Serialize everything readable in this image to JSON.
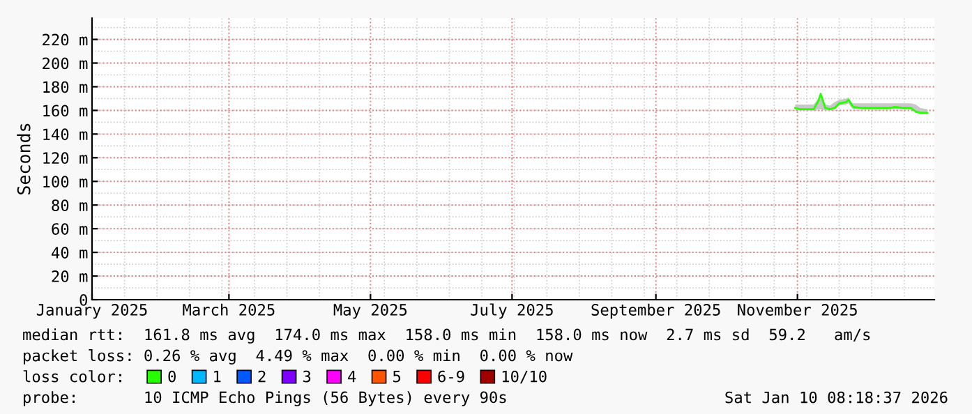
{
  "chart_data": {
    "type": "line",
    "ylabel": "Seconds",
    "legend_title": "loss color:",
    "legend": "bottom",
    "grid": true,
    "marker": "none",
    "line_style": "solid",
    "x": [
      "2025-10-31",
      "2025-11-02",
      "2025-11-05",
      "2025-11-08",
      "2025-11-10",
      "2025-11-11",
      "2025-11-13",
      "2025-11-15",
      "2025-11-17",
      "2025-11-19",
      "2025-11-22",
      "2025-11-23",
      "2025-11-24",
      "2025-11-25",
      "2025-11-29",
      "2025-12-05",
      "2025-12-11",
      "2025-12-13",
      "2025-12-17",
      "2025-12-20",
      "2025-12-22",
      "2025-12-24",
      "2025-12-27"
    ],
    "series": [
      {
        "name": "0",
        "color": "#26ff00",
        "values": [
          162,
          161,
          161,
          161,
          168,
          174,
          162,
          161,
          162,
          166,
          167,
          169,
          166,
          163,
          162,
          162,
          162,
          163,
          162,
          162,
          159,
          158,
          158
        ],
        "lower": [
          161,
          160,
          160,
          160,
          161,
          161,
          160,
          160,
          161,
          164,
          165,
          166,
          163,
          161,
          161,
          161,
          161,
          161,
          161,
          161,
          158,
          157,
          157
        ],
        "upper": [
          165,
          165,
          165,
          165,
          170,
          175,
          165,
          164,
          167,
          169,
          170,
          171,
          167,
          166,
          166,
          166,
          166,
          166,
          166,
          166,
          165,
          162,
          161
        ]
      },
      {
        "name": "1",
        "color": "#00b8ff",
        "values": [
          null,
          null,
          null,
          null,
          null,
          null,
          null,
          null,
          null,
          null,
          null,
          null,
          null,
          null,
          null,
          null,
          null,
          null,
          null,
          null,
          null,
          null,
          null
        ]
      },
      {
        "name": "2",
        "color": "#0059ff",
        "values": [
          null,
          null,
          null,
          null,
          null,
          null,
          null,
          null,
          null,
          null,
          null,
          null,
          null,
          null,
          null,
          null,
          null,
          null,
          null,
          null,
          null,
          null,
          null
        ]
      },
      {
        "name": "3",
        "color": "#7e00ff",
        "values": [
          null,
          null,
          null,
          null,
          null,
          null,
          null,
          null,
          null,
          null,
          null,
          null,
          null,
          null,
          null,
          null,
          null,
          null,
          null,
          null,
          null,
          null,
          null
        ]
      },
      {
        "name": "4",
        "color": "#ff00ff",
        "values": [
          null,
          null,
          null,
          null,
          null,
          null,
          null,
          null,
          null,
          null,
          null,
          null,
          null,
          null,
          null,
          null,
          null,
          null,
          null,
          null,
          null,
          null,
          null
        ]
      },
      {
        "name": "5",
        "color": "#ff5500",
        "values": [
          null,
          null,
          null,
          null,
          null,
          null,
          null,
          null,
          null,
          null,
          null,
          null,
          null,
          null,
          null,
          null,
          null,
          null,
          null,
          null,
          null,
          null,
          null
        ]
      },
      {
        "name": "6-9",
        "color": "#ff0000",
        "values": [
          null,
          null,
          null,
          null,
          null,
          null,
          null,
          null,
          null,
          null,
          null,
          null,
          null,
          null,
          null,
          null,
          null,
          null,
          null,
          null,
          null,
          null,
          null
        ]
      },
      {
        "name": "10/10",
        "color": "#a10000",
        "values": [
          null,
          null,
          null,
          null,
          null,
          null,
          null,
          null,
          null,
          null,
          null,
          null,
          null,
          null,
          null,
          null,
          null,
          null,
          null,
          null,
          null,
          null,
          null
        ]
      }
    ],
    "xlim": [
      "2025-01-01",
      "2025-12-30"
    ],
    "xticks": [
      {
        "value": "2025-01-01",
        "label": "January 2025"
      },
      {
        "value": "2025-03-01",
        "label": "March 2025"
      },
      {
        "value": "2025-05-01",
        "label": "May 2025"
      },
      {
        "value": "2025-07-01",
        "label": "July 2025"
      },
      {
        "value": "2025-09-01",
        "label": "September 2025"
      },
      {
        "value": "2025-11-01",
        "label": "November 2025"
      }
    ],
    "ylim": [
      0,
      238
    ],
    "yticks": [
      0,
      {
        "value": 20,
        "label": "20 m"
      },
      {
        "value": 40,
        "label": "40 m"
      },
      {
        "value": 60,
        "label": "60 m"
      },
      {
        "value": 80,
        "label": "80 m"
      },
      {
        "value": 100,
        "label": "100 m"
      },
      {
        "value": 120,
        "label": "120 m"
      },
      {
        "value": 140,
        "label": "140 m"
      },
      {
        "value": 160,
        "label": "160 m"
      },
      {
        "value": 180,
        "label": "180 m"
      },
      {
        "value": 200,
        "label": "200 m"
      },
      {
        "value": 220,
        "label": "220 m"
      }
    ],
    "annotations": [
      "median rtt:  161.8 ms avg  174.0 ms max  158.0 ms min  158.0 ms now  2.7 ms sd  59.2   am/s",
      "packet loss: 0.26 % avg  4.49 % max  0.00 % min  0.00 % now",
      "probe:       10 ICMP Echo Pings (56 Bytes) every 90s",
      "Sat Jan 10 08:18:37 2026"
    ]
  }
}
